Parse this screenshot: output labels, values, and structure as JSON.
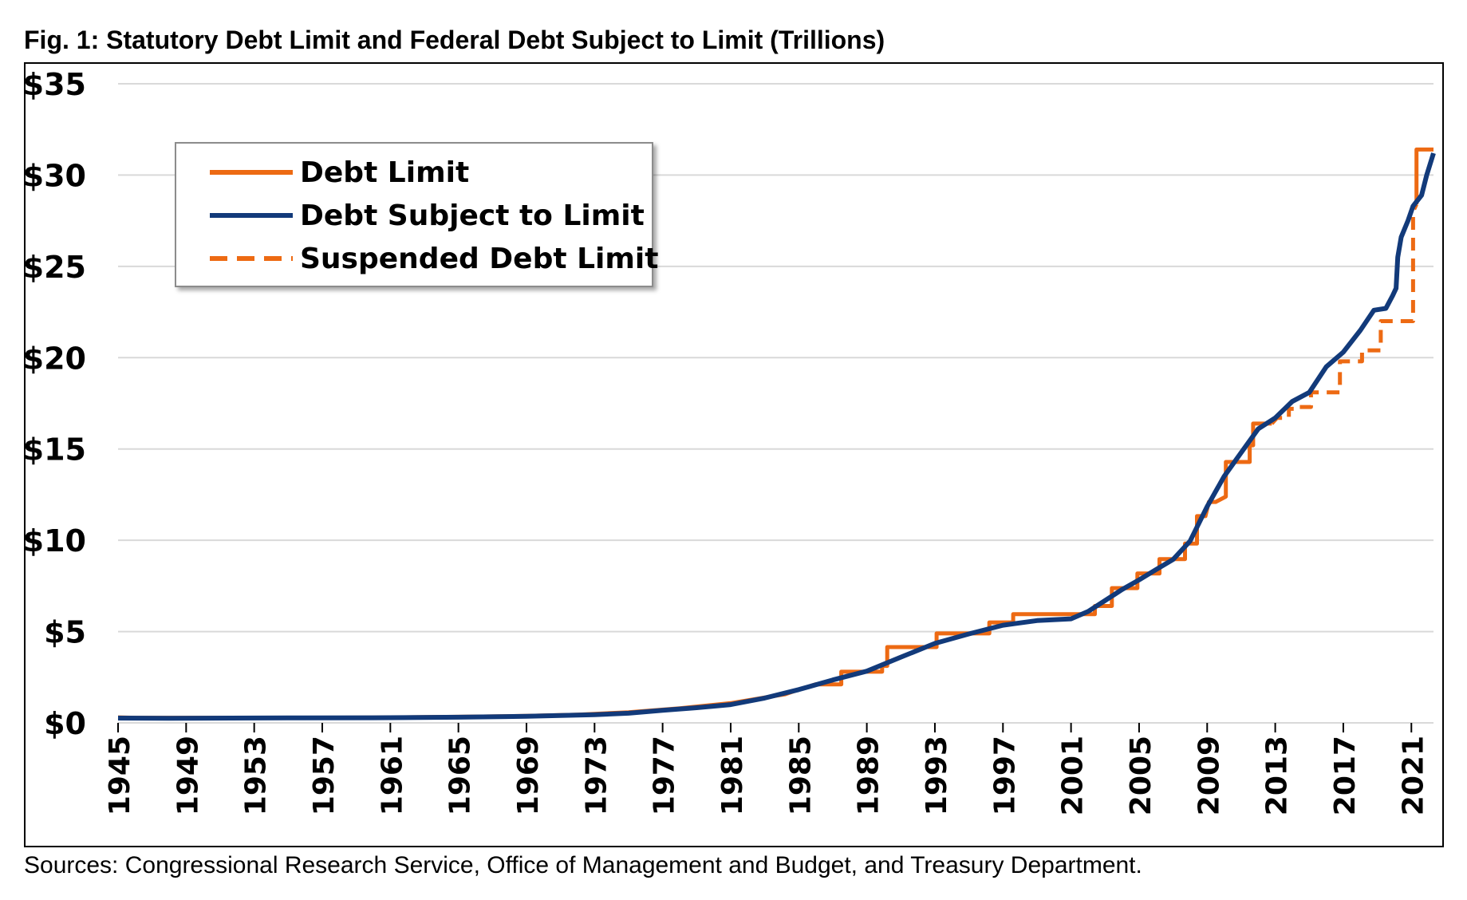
{
  "title": "Fig. 1: Statutory Debt Limit and Federal Debt Subject to Limit (Trillions)",
  "source": "Sources: Congressional Research Service, Office of Management and Budget, and Treasury Department.",
  "colors": {
    "debt_limit": "#ED6A13",
    "debt_subject": "#123A7A",
    "suspended": "#ED6A13",
    "gridline": "#d9d9d9"
  },
  "legend": [
    {
      "label": "Debt Limit",
      "style": "solid",
      "color": "#ED6A13"
    },
    {
      "label": "Debt Subject to Limit",
      "style": "solid",
      "color": "#123A7A"
    },
    {
      "label": "Suspended Debt Limit",
      "style": "dashed",
      "color": "#ED6A13"
    }
  ],
  "chart_data": {
    "type": "line",
    "title": "Fig. 1: Statutory Debt Limit and Federal Debt Subject to Limit (Trillions)",
    "xlabel": "",
    "ylabel": "",
    "xlim": [
      1945,
      2022.3
    ],
    "ylim": [
      0,
      35
    ],
    "grid": true,
    "legend_position": "top-left",
    "y_ticks": [
      0,
      5,
      10,
      15,
      20,
      25,
      30,
      35
    ],
    "y_tick_labels": [
      "$0",
      "$5",
      "$10",
      "$15",
      "$20",
      "$25",
      "$30",
      "$35"
    ],
    "x_ticks": [
      1945,
      1949,
      1953,
      1957,
      1961,
      1965,
      1969,
      1973,
      1977,
      1981,
      1985,
      1989,
      1993,
      1997,
      2001,
      2005,
      2009,
      2013,
      2017,
      2021
    ],
    "x_tick_labels": [
      "1945",
      "1949",
      "1953",
      "1957",
      "1961",
      "1965",
      "1969",
      "1973",
      "1977",
      "1981",
      "1985",
      "1989",
      "1993",
      "1997",
      "2001",
      "2005",
      "2009",
      "2013",
      "2017",
      "2021"
    ],
    "series": [
      {
        "name": "Debt Limit",
        "style": "solid",
        "color": "#ED6A13",
        "points": [
          [
            1945,
            0.3
          ],
          [
            1946,
            0.28
          ],
          [
            1955,
            0.28
          ],
          [
            1960,
            0.29
          ],
          [
            1965,
            0.33
          ],
          [
            1969,
            0.38
          ],
          [
            1972,
            0.45
          ],
          [
            1975,
            0.58
          ],
          [
            1978,
            0.8
          ],
          [
            1981,
            1.08
          ],
          [
            1983,
            1.39
          ],
          [
            1984.2,
            1.57
          ],
          [
            1985,
            1.82
          ],
          [
            1986,
            2.11
          ],
          [
            1987.5,
            2.11
          ],
          [
            1987.5,
            2.8
          ],
          [
            1989.9,
            2.8
          ],
          [
            1989.9,
            3.12
          ],
          [
            1990.2,
            3.12
          ],
          [
            1990.2,
            4.15
          ],
          [
            1993.1,
            4.15
          ],
          [
            1993.1,
            4.9
          ],
          [
            1996.2,
            4.9
          ],
          [
            1996.2,
            5.5
          ],
          [
            1997.6,
            5.5
          ],
          [
            1997.6,
            5.95
          ],
          [
            2002.4,
            5.95
          ],
          [
            2002.4,
            6.4
          ],
          [
            2003.4,
            6.4
          ],
          [
            2003.4,
            7.38
          ],
          [
            2004.9,
            7.38
          ],
          [
            2004.9,
            8.18
          ],
          [
            2006.2,
            8.18
          ],
          [
            2006.2,
            8.97
          ],
          [
            2007.7,
            8.97
          ],
          [
            2007.7,
            9.82
          ],
          [
            2008.4,
            9.82
          ],
          [
            2008.4,
            11.32
          ],
          [
            2008.9,
            11.32
          ],
          [
            2009.1,
            12.1
          ],
          [
            2009.5,
            12.1
          ],
          [
            2010.1,
            12.39
          ],
          [
            2010.1,
            14.29
          ],
          [
            2011.5,
            14.29
          ],
          [
            2011.5,
            15.2
          ],
          [
            2011.7,
            15.2
          ],
          [
            2011.7,
            16.39
          ],
          [
            2012.8,
            16.39
          ]
        ]
      },
      {
        "name": "Debt Limit",
        "style": "solid",
        "color": "#ED6A13",
        "points": [
          [
            2021.3,
            28.4
          ],
          [
            2021.3,
            31.4
          ],
          [
            2022.3,
            31.4
          ]
        ]
      },
      {
        "name": "Suspended Debt Limit",
        "style": "dashed",
        "color": "#ED6A13",
        "points": [
          [
            2012.8,
            16.39
          ],
          [
            2013.1,
            16.7
          ],
          [
            2013.8,
            16.7
          ],
          [
            2013.8,
            17.2
          ],
          [
            2014.2,
            17.2
          ],
          [
            2014.2,
            17.3
          ],
          [
            2015.1,
            17.3
          ],
          [
            2015.1,
            18.1
          ],
          [
            2016.8,
            18.1
          ],
          [
            2016.8,
            19.8
          ],
          [
            2018.1,
            19.8
          ],
          [
            2018.1,
            20.4
          ],
          [
            2019.2,
            20.4
          ],
          [
            2019.2,
            22.0
          ],
          [
            2021.1,
            22.0
          ],
          [
            2021.1,
            28.0
          ],
          [
            2021.3,
            28.4
          ]
        ]
      },
      {
        "name": "Debt Subject to Limit",
        "style": "solid",
        "color": "#123A7A",
        "points": [
          [
            1945,
            0.26
          ],
          [
            1948,
            0.25
          ],
          [
            1955,
            0.27
          ],
          [
            1960,
            0.28
          ],
          [
            1965,
            0.31
          ],
          [
            1969,
            0.36
          ],
          [
            1973,
            0.45
          ],
          [
            1975,
            0.53
          ],
          [
            1977,
            0.69
          ],
          [
            1979,
            0.83
          ],
          [
            1981,
            1.0
          ],
          [
            1983,
            1.36
          ],
          [
            1985,
            1.82
          ],
          [
            1987,
            2.35
          ],
          [
            1989,
            2.83
          ],
          [
            1991,
            3.6
          ],
          [
            1993,
            4.35
          ],
          [
            1995,
            4.87
          ],
          [
            1997,
            5.35
          ],
          [
            1999,
            5.6
          ],
          [
            2001,
            5.7
          ],
          [
            2002,
            6.1
          ],
          [
            2003,
            6.7
          ],
          [
            2004,
            7.3
          ],
          [
            2005,
            7.83
          ],
          [
            2006,
            8.4
          ],
          [
            2007,
            8.95
          ],
          [
            2008,
            9.96
          ],
          [
            2009,
            11.85
          ],
          [
            2010,
            13.5
          ],
          [
            2011,
            14.8
          ],
          [
            2012,
            16.1
          ],
          [
            2013,
            16.7
          ],
          [
            2014,
            17.6
          ],
          [
            2015,
            18.1
          ],
          [
            2016,
            19.5
          ],
          [
            2017,
            20.3
          ],
          [
            2018,
            21.5
          ],
          [
            2018.8,
            22.6
          ],
          [
            2019.5,
            22.7
          ],
          [
            2019.9,
            23.4
          ],
          [
            2020.1,
            23.8
          ],
          [
            2020.2,
            25.5
          ],
          [
            2020.4,
            26.6
          ],
          [
            2020.8,
            27.5
          ],
          [
            2021.1,
            28.3
          ],
          [
            2021.6,
            28.9
          ],
          [
            2021.9,
            30.0
          ],
          [
            2022.3,
            31.2
          ]
        ]
      }
    ]
  }
}
